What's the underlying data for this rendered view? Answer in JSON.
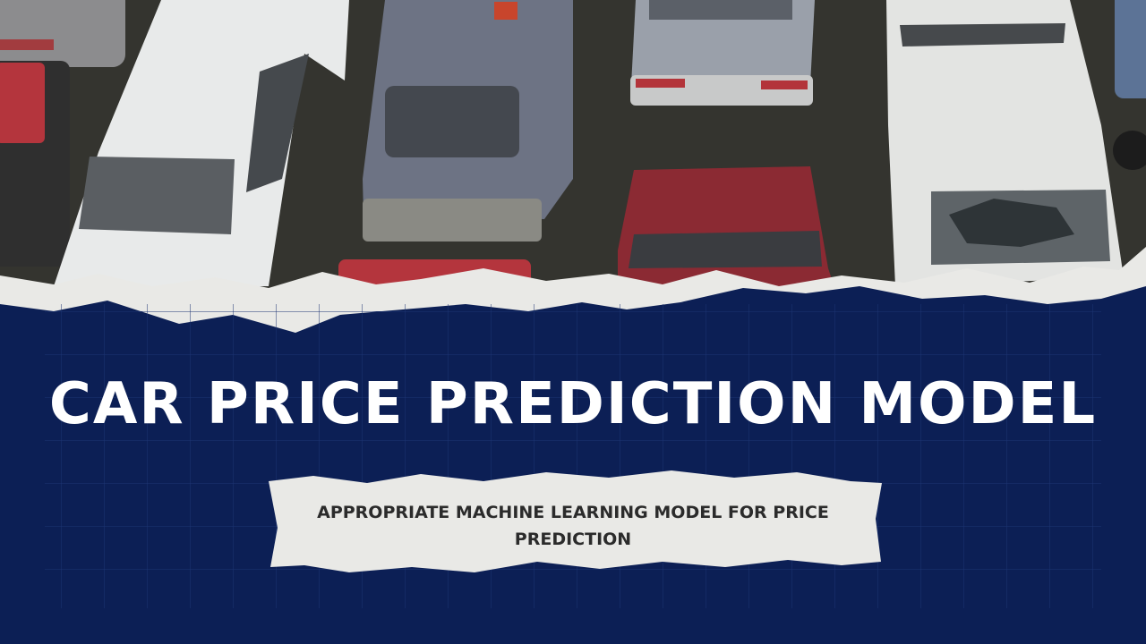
{
  "title": "CAR PRICE PREDICTION MODEL",
  "subtitle": "APPROPRIATE MACHINE LEARNING MODEL FOR PRICE PREDICTION",
  "colors": {
    "banner_navy": "#0c1f55",
    "title_text": "#ffffff",
    "subtitle_text": "#2b2b2b",
    "paper": "#e9e9e6",
    "asphalt": "#34342f"
  },
  "photo": {
    "cars": [
      {
        "name": "white-sedan-left",
        "color": "#e8eaea"
      },
      {
        "name": "grey-blue-sedan",
        "color": "#6d7384"
      },
      {
        "name": "silver-sedan-top",
        "color": "#9aa0aa"
      },
      {
        "name": "red-sedan-center",
        "color": "#8b2a33"
      },
      {
        "name": "white-sedan-right-broken-window",
        "color": "#e3e4e2"
      },
      {
        "name": "red-car-left-edge",
        "color": "#b4353d"
      },
      {
        "name": "grey-car-top-left",
        "color": "#8c8c8e"
      },
      {
        "name": "blue-car-right-edge",
        "color": "#5c7396"
      }
    ]
  }
}
